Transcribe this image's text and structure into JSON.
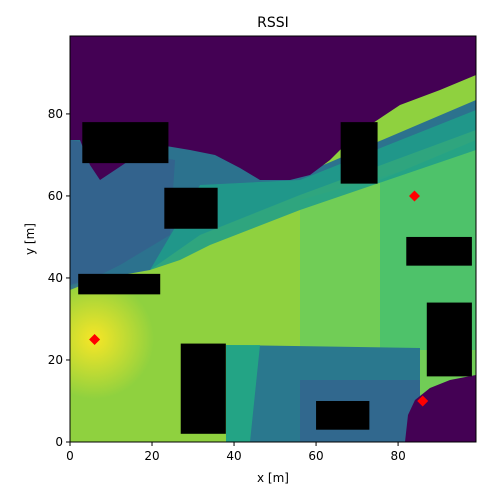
{
  "chart_data": {
    "type": "heatmap",
    "title": "RSSI",
    "xlabel": "x [m]",
    "ylabel": "y [m]",
    "xlim": [
      0,
      99
    ],
    "ylim": [
      0,
      99
    ],
    "xticks": [
      0,
      20,
      40,
      60,
      80
    ],
    "yticks": [
      0,
      20,
      40,
      60,
      80
    ],
    "grid": false,
    "colormap": "viridis",
    "obstacles": [
      {
        "x": [
          3,
          24
        ],
        "y": [
          68,
          78
        ]
      },
      {
        "x": [
          23,
          36
        ],
        "y": [
          52,
          62
        ]
      },
      {
        "x": [
          66,
          75
        ],
        "y": [
          63,
          78
        ]
      },
      {
        "x": [
          2,
          22
        ],
        "y": [
          36,
          41
        ]
      },
      {
        "x": [
          82,
          98
        ],
        "y": [
          43,
          50
        ]
      },
      {
        "x": [
          87,
          98
        ],
        "y": [
          16,
          34
        ]
      },
      {
        "x": [
          27,
          38
        ],
        "y": [
          2,
          24
        ]
      },
      {
        "x": [
          60,
          73
        ],
        "y": [
          3,
          10
        ]
      }
    ],
    "markers": [
      {
        "x": 6,
        "y": 25
      },
      {
        "x": 84,
        "y": 60
      },
      {
        "x": 86,
        "y": 10
      }
    ],
    "marker_color": "#ff0000",
    "obstacle_color": "#000000",
    "no_signal_color": "#440154"
  }
}
